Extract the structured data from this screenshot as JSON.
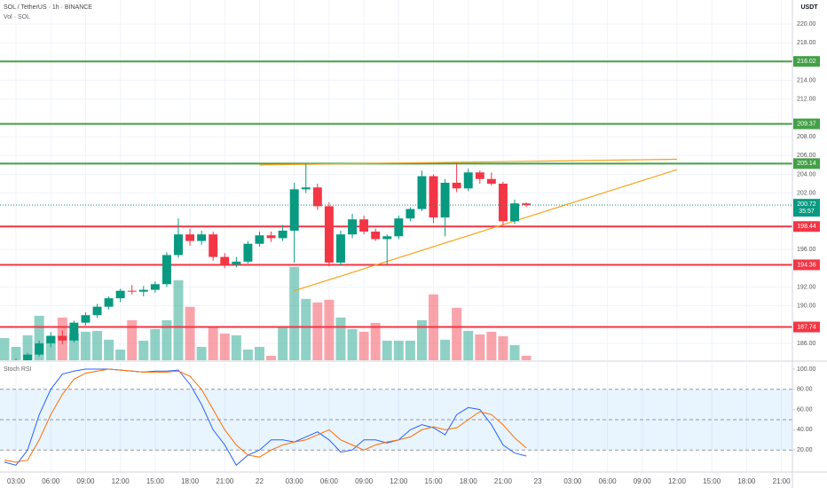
{
  "chart_data": {
    "type": "candlestick",
    "title": "SOL / TetherUS · 1h · BINANCE",
    "volume_title": "Vol · SOL",
    "indicator_title": "Stoch RSI",
    "currency": "USDT",
    "countdown": "35:57",
    "up_color": "#089981",
    "down_color": "#f23645",
    "grid": true,
    "x": [
      2,
      3,
      4,
      5,
      6,
      7,
      8,
      9,
      10,
      11,
      12,
      13,
      14,
      15,
      16,
      17,
      18,
      19,
      20,
      21,
      22,
      23,
      24,
      25,
      26,
      27,
      28,
      29,
      30,
      31,
      32,
      33,
      34,
      35,
      36,
      37,
      38,
      39,
      40,
      41,
      42,
      43,
      44,
      45,
      46,
      47
    ],
    "open": [
      183.5,
      183.8,
      184.2,
      184.8,
      186.0,
      186.8,
      186.3,
      188.2,
      189.0,
      189.9,
      190.8,
      191.6,
      191.5,
      191.7,
      192.3,
      195.4,
      197.6,
      196.9,
      197.6,
      195.2,
      194.4,
      194.7,
      196.6,
      197.5,
      197.2,
      198.0,
      202.4,
      202.6,
      200.6,
      194.6,
      197.6,
      199.2,
      197.9,
      197.1,
      197.4,
      199.3,
      200.3,
      203.8,
      199.4,
      203.1,
      202.5,
      204.2,
      203.5,
      203.0,
      199.0,
      200.9
    ],
    "high": [
      184.0,
      184.4,
      185.0,
      186.3,
      187.2,
      187.4,
      188.4,
      189.3,
      190.2,
      191.0,
      191.8,
      192.2,
      192.1,
      192.6,
      195.7,
      199.3,
      198.2,
      198.0,
      197.9,
      195.6,
      195.2,
      196.9,
      197.9,
      197.9,
      198.6,
      203.1,
      205.1,
      203.0,
      201.0,
      198.0,
      199.8,
      199.6,
      198.2,
      197.6,
      199.6,
      200.5,
      204.4,
      204.0,
      203.5,
      205.2,
      204.6,
      204.4,
      204.2,
      203.2,
      201.3,
      201.0
    ],
    "low": [
      183.2,
      183.5,
      183.9,
      184.6,
      185.6,
      185.9,
      186.1,
      187.9,
      188.7,
      189.6,
      190.4,
      191.2,
      191.0,
      191.4,
      192.0,
      195.1,
      196.4,
      196.5,
      194.8,
      194.0,
      194.1,
      194.5,
      196.3,
      196.8,
      196.9,
      194.6,
      202.0,
      200.2,
      194.2,
      194.3,
      197.2,
      197.6,
      196.9,
      194.4,
      197.1,
      199.0,
      200.1,
      198.8,
      197.4,
      202.1,
      202.2,
      203.0,
      202.8,
      198.6,
      198.7,
      200.5
    ],
    "close": [
      183.8,
      184.2,
      184.8,
      186.0,
      186.8,
      186.3,
      188.2,
      189.0,
      189.9,
      190.8,
      191.6,
      191.5,
      191.7,
      192.3,
      195.4,
      197.6,
      196.9,
      197.6,
      195.2,
      194.4,
      194.7,
      196.6,
      197.5,
      197.2,
      198.0,
      202.4,
      202.6,
      200.6,
      194.6,
      197.6,
      199.2,
      197.9,
      197.1,
      197.4,
      199.3,
      200.3,
      203.8,
      199.4,
      203.1,
      202.5,
      204.2,
      203.5,
      203.0,
      199.0,
      200.9,
      200.72
    ],
    "volume": [
      25,
      15,
      28,
      50,
      27,
      48,
      30,
      32,
      33,
      23,
      12,
      45,
      22,
      35,
      45,
      90,
      60,
      15,
      37,
      30,
      28,
      12,
      15,
      5,
      37,
      105,
      69,
      65,
      68,
      48,
      35,
      32,
      42,
      22,
      22,
      22,
      45,
      74,
      23,
      59,
      33,
      29,
      32,
      27,
      17,
      5
    ],
    "volume_ylim": [
      0,
      405
    ],
    "xlim": [
      1.62,
      69.95
    ],
    "xticks": [
      {
        "value": 3,
        "label": "03:00"
      },
      {
        "value": 6,
        "label": "06:00"
      },
      {
        "value": 9,
        "label": "09:00"
      },
      {
        "value": 12,
        "label": "12:00"
      },
      {
        "value": 15,
        "label": "15:00"
      },
      {
        "value": 18,
        "label": "18:00"
      },
      {
        "value": 21,
        "label": "21:00"
      },
      {
        "value": 24,
        "label": "22"
      },
      {
        "value": 27,
        "label": "03:00"
      },
      {
        "value": 30,
        "label": "06:00"
      },
      {
        "value": 33,
        "label": "09:00"
      },
      {
        "value": 36,
        "label": "12:00"
      },
      {
        "value": 39,
        "label": "15:00"
      },
      {
        "value": 42,
        "label": "18:00"
      },
      {
        "value": 45,
        "label": "21:00"
      },
      {
        "value": 48,
        "label": "23"
      },
      {
        "value": 51,
        "label": "03:00"
      },
      {
        "value": 54,
        "label": "06:00"
      },
      {
        "value": 57,
        "label": "09:00"
      },
      {
        "value": 60,
        "label": "12:00"
      },
      {
        "value": 63,
        "label": "15:00"
      },
      {
        "value": 66,
        "label": "18:00"
      },
      {
        "value": 69,
        "label": "21:00"
      }
    ],
    "ylim": [
      184.2,
      222.56
    ],
    "yticks": [
      {
        "value": 220,
        "label": "220.00"
      },
      {
        "value": 218,
        "label": "218.00"
      },
      {
        "value": 214,
        "label": "214.00"
      },
      {
        "value": 212,
        "label": "212.00"
      },
      {
        "value": 208,
        "label": "208.00"
      },
      {
        "value": 206,
        "label": "206.00"
      },
      {
        "value": 204,
        "label": "204.00"
      },
      {
        "value": 202,
        "label": "202.00"
      },
      {
        "value": 196,
        "label": "196.00"
      },
      {
        "value": 192,
        "label": "192.00"
      },
      {
        "value": 190,
        "label": "190.00"
      },
      {
        "value": 186,
        "label": "186.00"
      }
    ],
    "levels": [
      {
        "value": 216.02,
        "color": "#43a047"
      },
      {
        "value": 209.37,
        "color": "#43a047"
      },
      {
        "value": 205.14,
        "color": "#43a047"
      },
      {
        "value": 198.44,
        "color": "#f23645"
      },
      {
        "value": 194.36,
        "color": "#f23645"
      },
      {
        "value": 187.74,
        "color": "#f23645"
      }
    ],
    "trendlines": [
      {
        "color": "#f7a21b",
        "x": [
          24,
          60
        ],
        "y": [
          205.0,
          205.6
        ]
      },
      {
        "color": "#f7a21b",
        "x": [
          27,
          60
        ],
        "y": [
          191.6,
          204.5
        ]
      }
    ],
    "stoch": {
      "ylim": [
        0,
        100
      ],
      "yticks": [
        {
          "value": 100,
          "label": "100.00"
        },
        {
          "value": 80,
          "label": "80.00"
        },
        {
          "value": 60,
          "label": "60.00"
        },
        {
          "value": 40,
          "label": "40.00"
        },
        {
          "value": 20,
          "label": "20.00"
        }
      ],
      "bands": [
        80,
        50,
        20
      ],
      "series": [
        {
          "color": "#2962ff",
          "values": [
            8,
            5,
            20,
            55,
            80,
            95,
            98,
            100,
            100,
            100,
            99,
            98,
            97,
            98,
            98,
            99,
            85,
            65,
            40,
            25,
            5,
            15,
            20,
            30,
            30,
            28,
            33,
            38,
            30,
            18,
            20,
            30,
            30,
            27,
            30,
            40,
            45,
            42,
            35,
            55,
            62,
            60,
            45,
            25,
            17,
            14
          ]
        },
        {
          "color": "#ff6d00",
          "values": [
            10,
            8,
            10,
            30,
            55,
            75,
            90,
            96,
            98,
            100,
            99,
            98,
            97,
            97,
            97,
            98,
            93,
            80,
            60,
            40,
            25,
            15,
            13,
            20,
            25,
            28,
            30,
            35,
            40,
            30,
            25,
            20,
            25,
            28,
            30,
            33,
            40,
            43,
            40,
            42,
            50,
            58,
            55,
            45,
            32,
            22
          ]
        }
      ]
    }
  }
}
